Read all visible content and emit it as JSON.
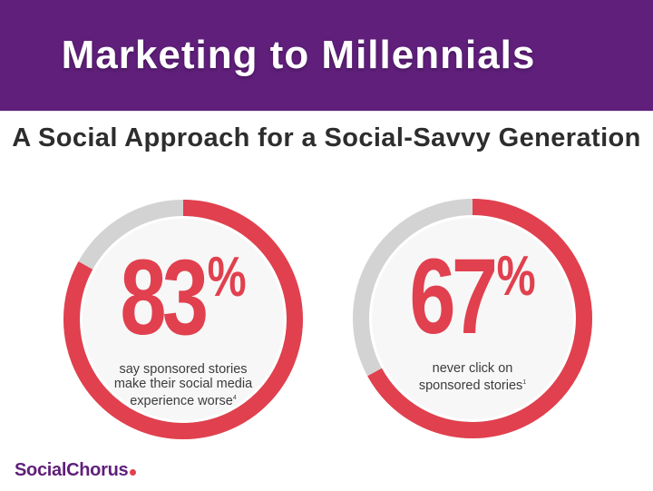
{
  "slide": {
    "title": "Marketing to Millennials",
    "subtitle": "A Social Approach for a Social-Savvy Generation"
  },
  "stats": [
    {
      "number": "83",
      "percent_sign": "%",
      "value_percent": 83,
      "caption_lines": [
        "say sponsored stories",
        "make their social media",
        "experience worse"
      ],
      "footnote": "4"
    },
    {
      "number": "67",
      "percent_sign": "%",
      "value_percent": 67,
      "caption_lines": [
        "never click on",
        "sponsored stories"
      ],
      "footnote": "1"
    }
  ],
  "logo": {
    "text": "SocialChorus"
  },
  "colors": {
    "brand_purple": "#5f1f7a",
    "accent_red": "#e1404e",
    "ring_gray": "#d3d3d3",
    "inner_fill": "#f7f7f7"
  }
}
